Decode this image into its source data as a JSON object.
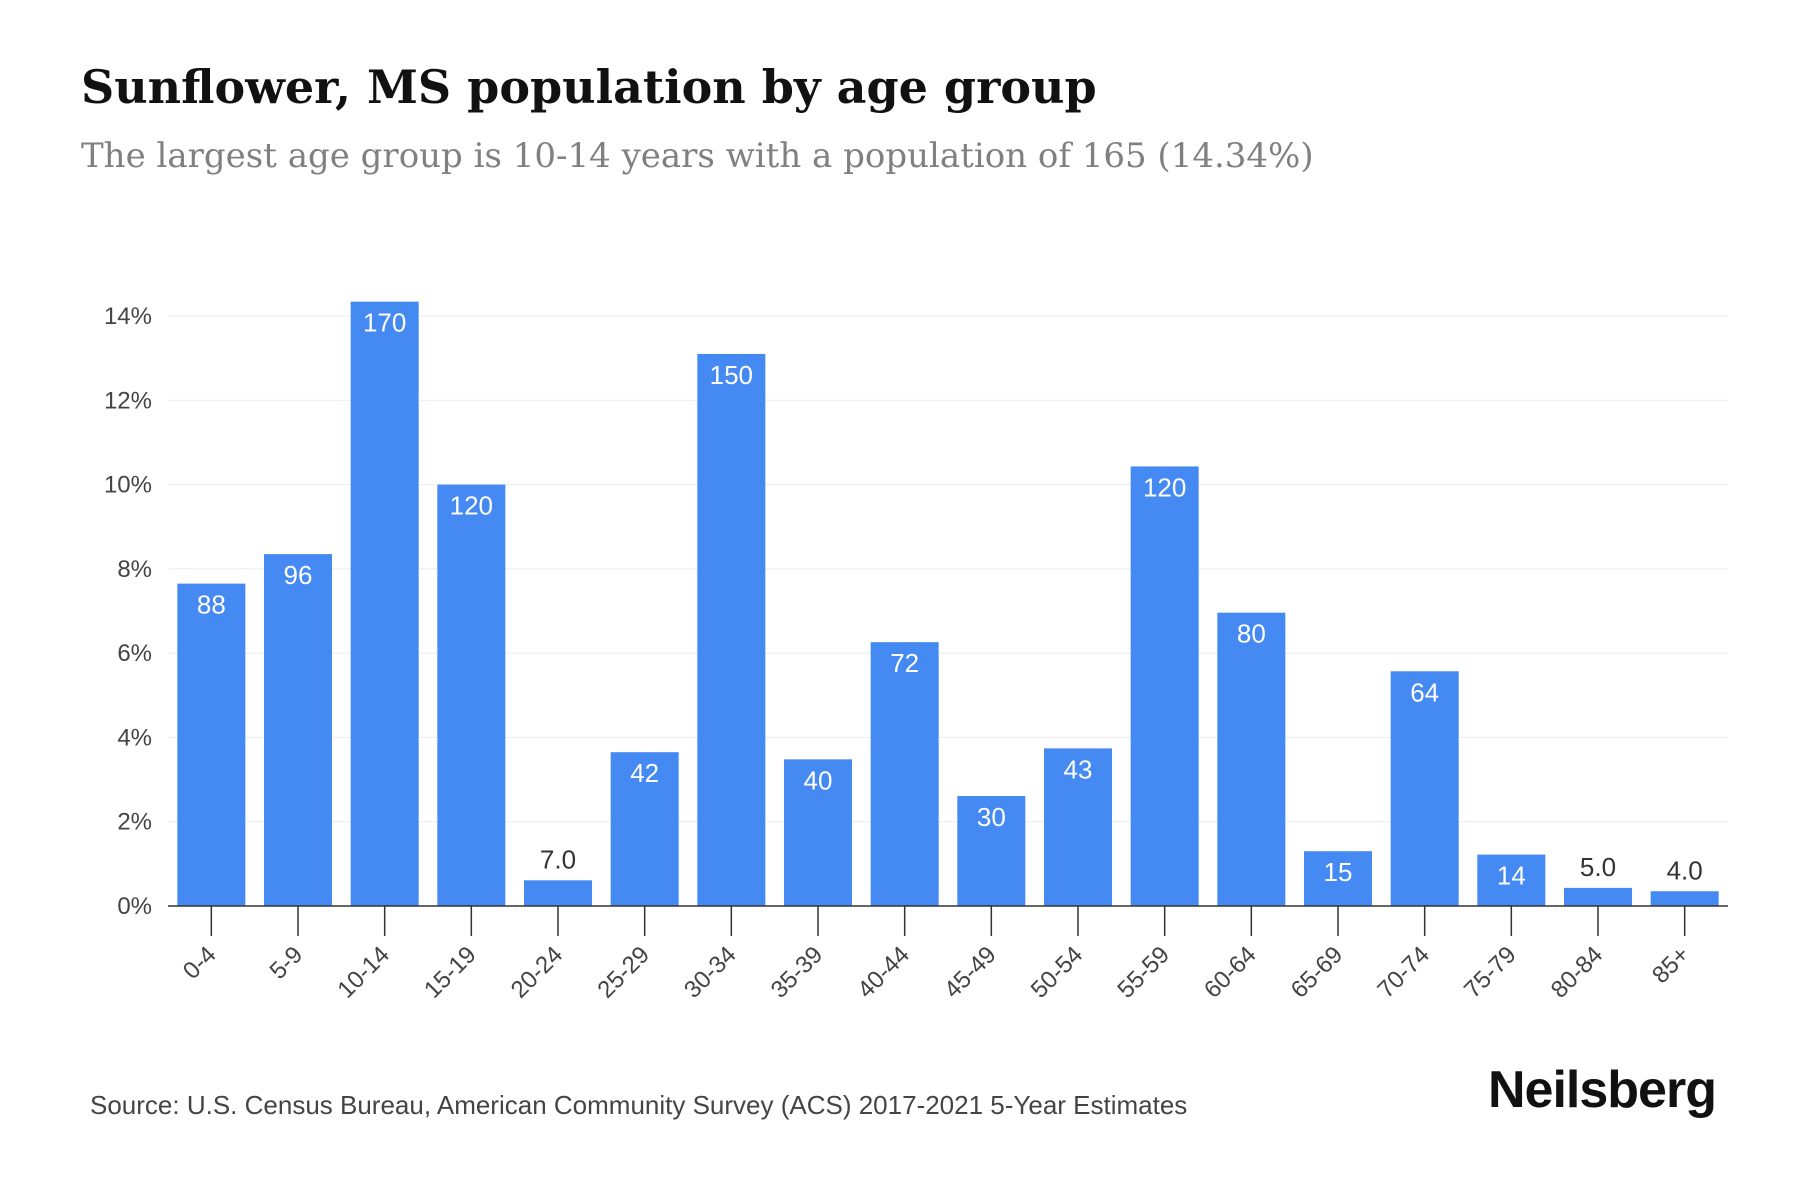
{
  "header": {
    "title": "Sunflower, MS population by age group",
    "subtitle": "The largest age group is 10-14 years with a population of 165 (14.34%)"
  },
  "footer": {
    "source": "Source: U.S. Census Bureau, American Community Survey (ACS) 2017-2021 5-Year Estimates",
    "brand": "Neilsberg"
  },
  "chart_data": {
    "type": "bar",
    "title": "",
    "xlabel": "",
    "ylabel": "",
    "categories": [
      "0-4",
      "5-9",
      "10-14",
      "15-19",
      "20-24",
      "25-29",
      "30-34",
      "35-39",
      "40-44",
      "45-49",
      "50-54",
      "55-59",
      "60-64",
      "65-69",
      "70-74",
      "75-79",
      "80-84",
      "85+"
    ],
    "values": [
      7.65,
      8.35,
      14.34,
      10.0,
      0.61,
      3.65,
      13.1,
      3.48,
      6.26,
      2.61,
      3.74,
      10.43,
      6.96,
      1.3,
      5.57,
      1.22,
      0.43,
      0.35
    ],
    "data_labels": [
      "88",
      "96",
      "170",
      "120",
      "7.0",
      "42",
      "150",
      "40",
      "72",
      "30",
      "43",
      "120",
      "80",
      "15",
      "64",
      "14",
      "5.0",
      "4.0"
    ],
    "yticks": [
      0,
      2,
      4,
      6,
      8,
      10,
      12,
      14
    ],
    "ytick_labels": [
      "0%",
      "2%",
      "4%",
      "6%",
      "8%",
      "10%",
      "12%",
      "14%"
    ],
    "ylim": [
      0,
      14
    ],
    "grid": true,
    "colors": {
      "bar": "#4589f3",
      "grid": "#ebebeb",
      "axis": "#333333",
      "label_inside": "#ffffff",
      "label_outside": "#333333",
      "tick_text": "#444444"
    }
  }
}
